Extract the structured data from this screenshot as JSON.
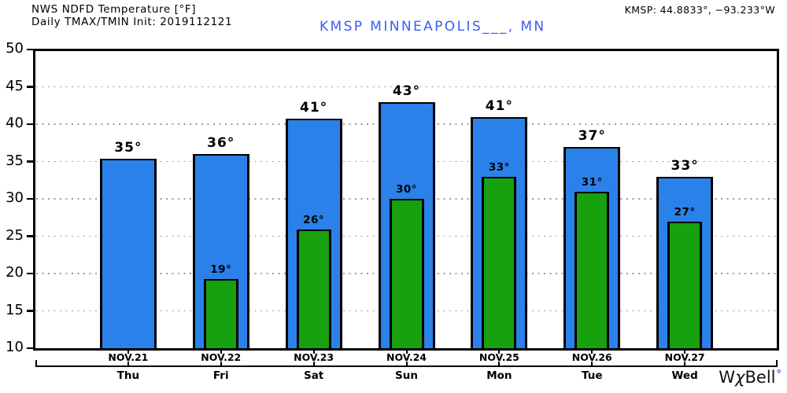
{
  "header": {
    "title": "NWS NDFD Temperature [°F]",
    "subtitle": "Daily TMAX/TMIN Init: 2019112121",
    "coords": "KMSP: 44.8833°, −93.233°W",
    "station": "KMSP MINNEAPOLIS___, MN"
  },
  "logo": {
    "prefix": "W",
    "chi": "χ",
    "suffix": "Bell",
    "degree": "°"
  },
  "colors": {
    "tmax_bar": "#2B81EA",
    "tmin_bar": "#17A10E",
    "bar_outline": "#000000",
    "station_text": "#3C5CF0",
    "logo_degree": "#2B5CE6",
    "gridline": "#9C9C9C",
    "axis": "#000000",
    "text": "#000000"
  },
  "chart_data": {
    "type": "bar",
    "title": "NWS NDFD Temperature [°F]",
    "subtitle": "Daily TMAX/TMIN Init: 2019112121",
    "station": "KMSP MINNEAPOLIS___, MN",
    "location": "KMSP: 44.8833°, −93.233°W",
    "categories": [
      "NOV.21",
      "NOV.22",
      "NOV.23",
      "NOV.24",
      "NOV.25",
      "NOV.26",
      "NOV.27"
    ],
    "day_labels": [
      "Thu",
      "Fri",
      "Sat",
      "Sun",
      "Mon",
      "Tue",
      "Wed"
    ],
    "series": [
      {
        "name": "TMAX",
        "color": "#2B81EA",
        "values": [
          35.4,
          36.0,
          40.7,
          43.0,
          40.9,
          37.0,
          32.9
        ],
        "labels": [
          "35°",
          "36°",
          "41°",
          "43°",
          "41°",
          "37°",
          "33°"
        ]
      },
      {
        "name": "TMIN",
        "color": "#17A10E",
        "values": [
          null,
          19.3,
          25.9,
          30.0,
          33.0,
          31.0,
          27.0
        ],
        "labels": [
          null,
          "19°",
          "26°",
          "30°",
          "33°",
          "31°",
          "27°"
        ]
      }
    ],
    "ylim": [
      10,
      50
    ],
    "ytick_step": 5,
    "yticks": [
      10,
      15,
      20,
      25,
      30,
      35,
      40,
      45,
      50
    ],
    "grid": "horizontal dotted at each 5°",
    "legend": "none",
    "xlabel": "",
    "ylabel": ""
  }
}
